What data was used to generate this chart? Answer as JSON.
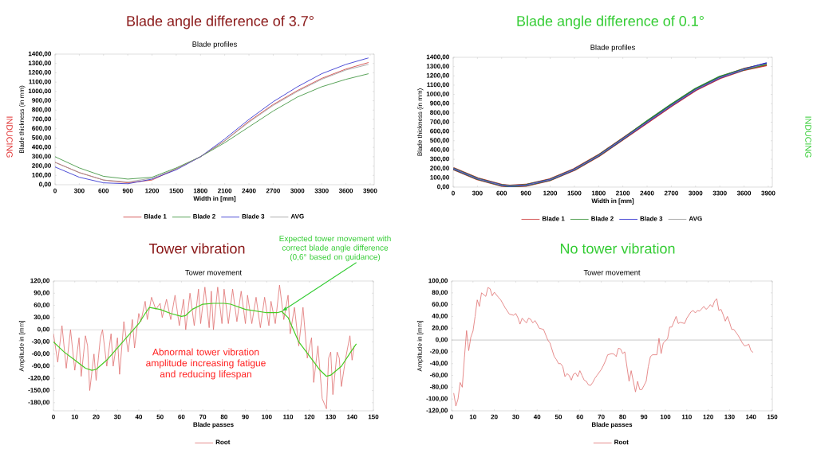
{
  "chart_data": [
    {
      "type": "line",
      "title": "Blade profiles",
      "xlabel": "Width in [mm]",
      "ylabel": "Blade thickness (in mm)",
      "annotations": [
        "Blade angle difference of 3.7°",
        "INDUCING"
      ],
      "x": [
        0,
        300,
        600,
        900,
        1200,
        1500,
        1800,
        2100,
        2400,
        2700,
        3000,
        3300,
        3600,
        3880
      ],
      "series": [
        {
          "name": "Blade 1",
          "color": "#cc3333",
          "values": [
            240,
            130,
            50,
            20,
            50,
            170,
            300,
            470,
            680,
            860,
            1010,
            1140,
            1240,
            1310
          ]
        },
        {
          "name": "Blade 2",
          "color": "#2e8b2e",
          "values": [
            300,
            180,
            90,
            60,
            80,
            180,
            300,
            450,
            620,
            790,
            940,
            1050,
            1130,
            1190
          ]
        },
        {
          "name": "Blade 3",
          "color": "#2222cc",
          "values": [
            190,
            80,
            20,
            10,
            60,
            160,
            300,
            490,
            700,
            890,
            1050,
            1190,
            1290,
            1360
          ]
        },
        {
          "name": "AVG",
          "color": "#999999",
          "values": [
            240,
            130,
            50,
            30,
            70,
            170,
            300,
            470,
            670,
            850,
            1000,
            1130,
            1230,
            1290
          ]
        }
      ],
      "xlim": [
        0,
        3950
      ],
      "ylim": [
        0,
        1400
      ],
      "xticks": [
        0,
        300,
        600,
        900,
        1200,
        1500,
        1800,
        2100,
        2400,
        2700,
        3000,
        3300,
        3600,
        3900
      ],
      "yticks": [
        {
          "value": 0,
          "label": "0,00"
        },
        {
          "value": 100,
          "label": "100,00"
        },
        {
          "value": 200,
          "label": "200,00"
        },
        {
          "value": 300,
          "label": "300,00"
        },
        {
          "value": 400,
          "label": "400,00"
        },
        {
          "value": 500,
          "label": "500,00"
        },
        {
          "value": 600,
          "label": "600,00"
        },
        {
          "value": 700,
          "label": "700,00"
        },
        {
          "value": 800,
          "label": "800,00"
        },
        {
          "value": 900,
          "label": "900,00"
        },
        {
          "value": 1000,
          "label": "1000,00"
        },
        {
          "value": 1100,
          "label": "1100,00"
        },
        {
          "value": 1200,
          "label": "1200,00"
        },
        {
          "value": 1300,
          "label": "1300,00"
        },
        {
          "value": 1400,
          "label": "1400,00"
        }
      ],
      "legend": "bottom"
    },
    {
      "type": "line",
      "title": "Blade profiles",
      "xlabel": "Width in [mm]",
      "ylabel": "Blade thickness (in mm)",
      "annotations": [
        "Blade angle difference of 0.1°",
        "INDUCING"
      ],
      "x": [
        0,
        300,
        600,
        700,
        900,
        1200,
        1500,
        1800,
        2100,
        2400,
        2700,
        3000,
        3300,
        3600,
        3880
      ],
      "series": [
        {
          "name": "Blade 1",
          "color": "#cc3333",
          "values": [
            200,
            90,
            20,
            10,
            20,
            80,
            190,
            340,
            520,
            700,
            880,
            1050,
            1180,
            1270,
            1320
          ]
        },
        {
          "name": "Blade 2",
          "color": "#2e8b2e",
          "values": [
            200,
            90,
            20,
            10,
            20,
            80,
            190,
            340,
            520,
            710,
            890,
            1060,
            1190,
            1270,
            1330
          ]
        },
        {
          "name": "Blade 3",
          "color": "#2222cc",
          "values": [
            200,
            90,
            20,
            10,
            20,
            80,
            190,
            340,
            520,
            700,
            880,
            1050,
            1180,
            1270,
            1340
          ]
        },
        {
          "name": "AVG",
          "color": "#999999",
          "values": [
            200,
            90,
            20,
            10,
            20,
            80,
            190,
            340,
            520,
            700,
            880,
            1050,
            1180,
            1270,
            1330
          ]
        }
      ],
      "xlim": [
        0,
        3950
      ],
      "ylim": [
        0,
        1400
      ],
      "xticks": [
        0,
        300,
        600,
        900,
        1200,
        1500,
        1800,
        2100,
        2400,
        2700,
        3000,
        3300,
        3600,
        3900
      ],
      "yticks": [
        {
          "value": 0,
          "label": "0,00"
        },
        {
          "value": 100,
          "label": "100,00"
        },
        {
          "value": 200,
          "label": "200,00"
        },
        {
          "value": 300,
          "label": "300,00"
        },
        {
          "value": 400,
          "label": "400,00"
        },
        {
          "value": 500,
          "label": "500,00"
        },
        {
          "value": 600,
          "label": "600,00"
        },
        {
          "value": 700,
          "label": "700,00"
        },
        {
          "value": 800,
          "label": "800,00"
        },
        {
          "value": 900,
          "label": "900,00"
        },
        {
          "value": 1000,
          "label": "1000,00"
        },
        {
          "value": 1100,
          "label": "1100,00"
        },
        {
          "value": 1200,
          "label": "1200,00"
        },
        {
          "value": 1300,
          "label": "1300,00"
        },
        {
          "value": 1400,
          "label": "1400,00"
        }
      ],
      "legend": "bottom"
    },
    {
      "type": "line",
      "title": "Tower movement",
      "xlabel": "Blade passes",
      "ylabel": "Amplitude in [mm]",
      "annotations": [
        "Tower vibration",
        {
          "text": "Expected tower movement with correct blade angle difference (0,6° based on guidance)",
          "x": 107,
          "y": 45
        },
        "Abnormal tower vibration amplitude increasing fatigue and reducing lifespan"
      ],
      "series": [
        {
          "name": "Root",
          "color": "#e07070",
          "x": [
            0,
            2,
            4,
            6,
            8,
            10,
            12,
            13,
            15,
            16,
            17,
            19,
            20,
            22,
            23,
            25,
            27,
            28,
            30,
            31,
            33,
            35,
            37,
            38,
            40,
            41,
            43,
            44,
            46,
            48,
            50,
            51,
            53,
            55,
            57,
            59,
            61,
            62,
            64,
            66,
            68,
            69,
            71,
            73,
            74,
            75,
            77,
            79,
            80,
            82,
            84,
            86,
            88,
            90,
            91,
            93,
            95,
            97,
            99,
            101,
            102,
            104,
            106,
            108,
            110,
            111,
            113,
            115,
            117,
            119,
            121,
            122,
            124,
            126,
            128,
            129,
            130,
            131,
            133,
            134,
            135,
            137,
            139,
            140,
            141
          ],
          "values": [
            -10,
            -80,
            10,
            -95,
            0,
            -100,
            -20,
            -115,
            -15,
            -40,
            -150,
            -60,
            -125,
            -20,
            0,
            -90,
            -10,
            -90,
            -20,
            -110,
            20,
            -55,
            25,
            -45,
            40,
            20,
            70,
            25,
            80,
            50,
            65,
            30,
            75,
            25,
            85,
            10,
            75,
            0,
            90,
            10,
            100,
            15,
            105,
            5,
            95,
            0,
            105,
            15,
            100,
            15,
            100,
            20,
            95,
            15,
            85,
            15,
            80,
            5,
            80,
            10,
            70,
            15,
            110,
            25,
            85,
            -10,
            55,
            -40,
            55,
            -70,
            -20,
            -130,
            -40,
            -170,
            -195,
            -70,
            -55,
            -160,
            -55,
            -70,
            -140,
            -70,
            -15,
            -75,
            -40
          ]
        },
        {
          "color": "#44cc22",
          "x": [
            0,
            5,
            10,
            15,
            18,
            20,
            25,
            30,
            35,
            40,
            43,
            45,
            50,
            55,
            60,
            62,
            65,
            70,
            75,
            80,
            83,
            90,
            100,
            105,
            107,
            110,
            115,
            120,
            125,
            128,
            130,
            135,
            140,
            142
          ],
          "values": [
            -30,
            -55,
            -75,
            -95,
            -100,
            -98,
            -75,
            -45,
            -15,
            15,
            40,
            55,
            50,
            40,
            33,
            35,
            50,
            63,
            65,
            65,
            63,
            50,
            42,
            42,
            45,
            30,
            -30,
            -65,
            -100,
            -115,
            -112,
            -90,
            -50,
            -35
          ]
        }
      ],
      "xlim": [
        0,
        150
      ],
      "ylim": [
        -200,
        120
      ],
      "xticks": [
        0,
        10,
        20,
        30,
        40,
        50,
        60,
        70,
        80,
        90,
        100,
        110,
        120,
        130,
        140,
        150
      ],
      "yticks": [
        {
          "value": -180,
          "label": "-180,00"
        },
        {
          "value": -150,
          "label": "-150,00"
        },
        {
          "value": -120,
          "label": "-120,00"
        },
        {
          "value": -90,
          "label": "-90,00"
        },
        {
          "value": -60,
          "label": "-60,00"
        },
        {
          "value": -30,
          "label": "-30,00"
        },
        {
          "value": 0,
          "label": "0,00"
        },
        {
          "value": 30,
          "label": "30,00"
        },
        {
          "value": 60,
          "label": "60,00"
        },
        {
          "value": 90,
          "label": "90,00"
        },
        {
          "value": 120,
          "label": "120,00"
        }
      ],
      "ref_lines": [
        {
          "axis": "y",
          "value": 0,
          "color": "#bbbbbb"
        }
      ],
      "legend": "bottom"
    },
    {
      "type": "line",
      "title": "Tower movement",
      "xlabel": "Blade passes",
      "ylabel": "Amplitude in [mm]",
      "annotations": [
        "No tower vibration"
      ],
      "series": [
        {
          "name": "Root",
          "color": "#e07070",
          "x": [
            1,
            2,
            3,
            4,
            5,
            6,
            7,
            8,
            9,
            10,
            11,
            12,
            13,
            14,
            15,
            16,
            17,
            18,
            19,
            20,
            22,
            23,
            25,
            27,
            29,
            30,
            31,
            32,
            33,
            35,
            36,
            37,
            38,
            39,
            40,
            41,
            43,
            45,
            46,
            48,
            49,
            50,
            51,
            52,
            53,
            54,
            55,
            56,
            57,
            58,
            59,
            60,
            61,
            62,
            63,
            64,
            65,
            66,
            67,
            68,
            70,
            71,
            72,
            73,
            75,
            76,
            77,
            78,
            79,
            80,
            81,
            83,
            84,
            86,
            87,
            88,
            89,
            90,
            91,
            92,
            93,
            94,
            96,
            97,
            98,
            99,
            101,
            102,
            103,
            105,
            106,
            107,
            109,
            110,
            112,
            113,
            114,
            115,
            116,
            118,
            119,
            120,
            121,
            122,
            123,
            124,
            125,
            126,
            127,
            128,
            129,
            130,
            131,
            132,
            134,
            136,
            137,
            138,
            139,
            140,
            141
          ],
          "values": [
            -90,
            -112,
            -100,
            -72,
            -80,
            -30,
            16,
            -18,
            5,
            15,
            40,
            68,
            57,
            80,
            77,
            74,
            89,
            87,
            75,
            81,
            72,
            68,
            55,
            44,
            42,
            45,
            38,
            27,
            37,
            29,
            37,
            35,
            29,
            33,
            27,
            20,
            18,
            0,
            -5,
            -28,
            -33,
            -40,
            -40,
            -45,
            -62,
            -57,
            -60,
            -68,
            -58,
            -56,
            -62,
            -52,
            -60,
            -68,
            -70,
            -76,
            -77,
            -72,
            -65,
            -60,
            -50,
            -43,
            -35,
            -25,
            -23,
            -24,
            -28,
            -14,
            -15,
            -23,
            -20,
            -70,
            -52,
            -88,
            -70,
            -84,
            -84,
            -77,
            -70,
            -45,
            -28,
            -25,
            -25,
            3,
            -23,
            -5,
            2,
            22,
            22,
            40,
            28,
            30,
            28,
            37,
            48,
            50,
            46,
            50,
            49,
            57,
            52,
            55,
            60,
            56,
            66,
            70,
            50,
            52,
            43,
            32,
            40,
            30,
            18,
            18,
            8,
            -5,
            -10,
            -9,
            -7,
            -18,
            -21
          ]
        }
      ],
      "xlim": [
        0,
        150
      ],
      "ylim": [
        -120,
        100
      ],
      "xticks": [
        0,
        10,
        20,
        30,
        40,
        50,
        60,
        70,
        80,
        90,
        100,
        110,
        120,
        130,
        140,
        150
      ],
      "yticks": [
        {
          "value": -120,
          "label": "-120,00"
        },
        {
          "value": -100,
          "label": "-100,00"
        },
        {
          "value": -80,
          "label": "-80,00"
        },
        {
          "value": -60,
          "label": "-60,00"
        },
        {
          "value": -40,
          "label": "-40,00"
        },
        {
          "value": -20,
          "label": "-20,00"
        },
        {
          "value": 0,
          "label": "0,00"
        },
        {
          "value": 20,
          "label": "20,00"
        },
        {
          "value": 40,
          "label": "40,00"
        },
        {
          "value": 60,
          "label": "60,00"
        },
        {
          "value": 80,
          "label": "80,00"
        },
        {
          "value": 100,
          "label": "100,00"
        }
      ],
      "ref_lines": [
        {
          "axis": "y",
          "value": 0,
          "color": "#bbbbbb"
        }
      ],
      "legend": "bottom"
    }
  ]
}
